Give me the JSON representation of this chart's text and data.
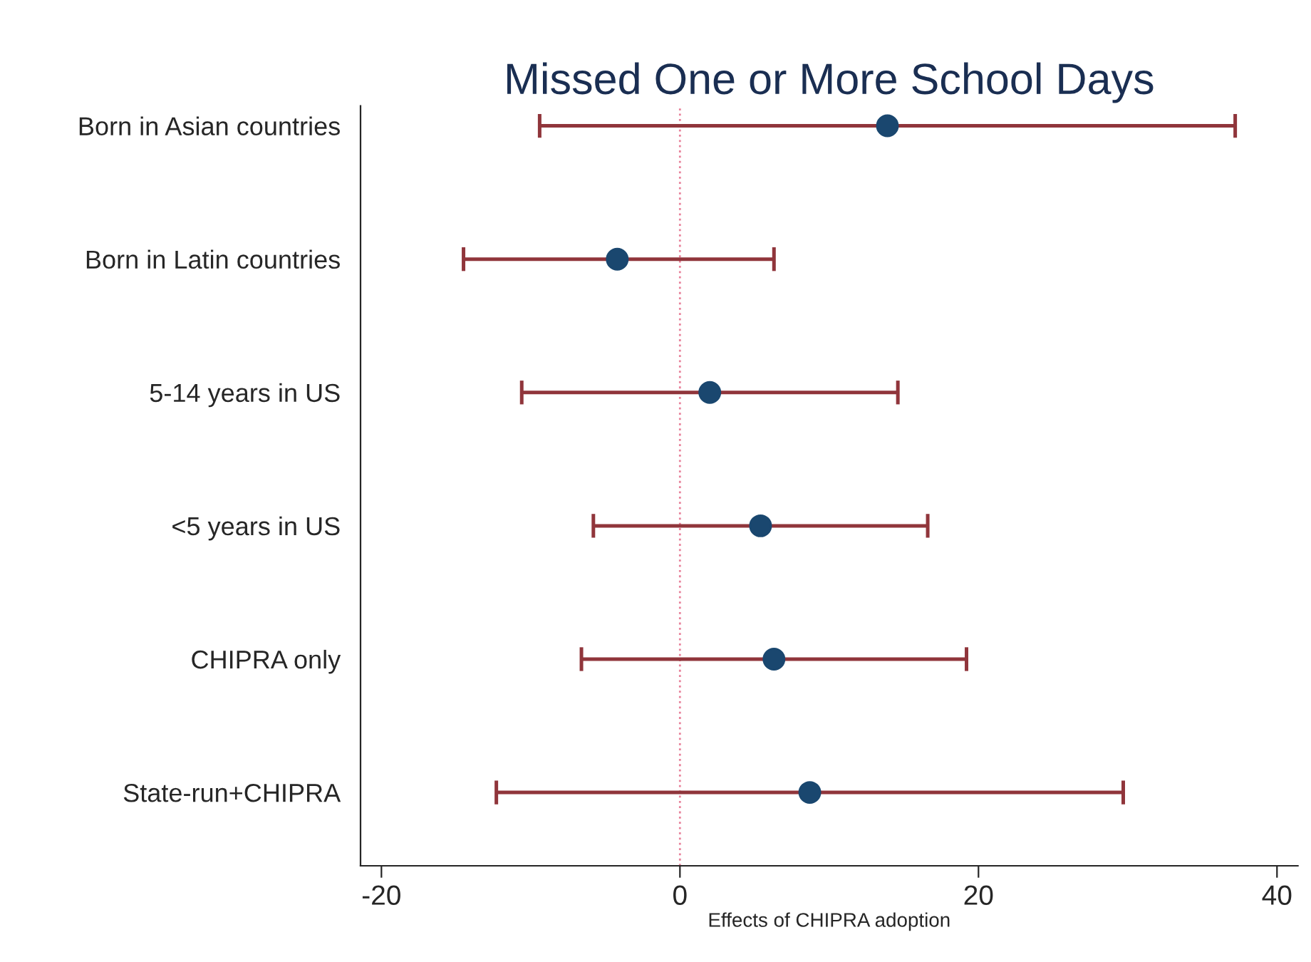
{
  "chart_data": {
    "type": "scatter",
    "orientation": "horizontal",
    "title": "Missed One or More School Days",
    "xlabel": "Effects of CHIPRA adoption",
    "categories": [
      "Born in Asian countries",
      "Born in Latin countries",
      "5-14 years in US",
      "<5 years in US",
      "CHIPRA only",
      "State-run+CHIPRA"
    ],
    "series": [
      {
        "color": "#1a476f",
        "values": [
          13.9,
          -4.2,
          2.0,
          5.4,
          6.3,
          8.7
        ],
        "errors": [
          [
            -9.4,
            37.2
          ],
          [
            -14.5,
            6.3
          ],
          [
            -10.6,
            14.6
          ],
          [
            -5.8,
            16.6
          ],
          [
            -6.6,
            19.2
          ],
          [
            -12.3,
            29.7
          ]
        ]
      }
    ],
    "xlim": [
      -21.4,
      41.4
    ],
    "xticks": [
      -20,
      0,
      20,
      40
    ],
    "ref_lines": [
      {
        "axis": "x",
        "value": 0,
        "color": "#e8829b",
        "line_style": "dotted"
      }
    ],
    "marker": "circle",
    "grid": false,
    "legend": false
  }
}
